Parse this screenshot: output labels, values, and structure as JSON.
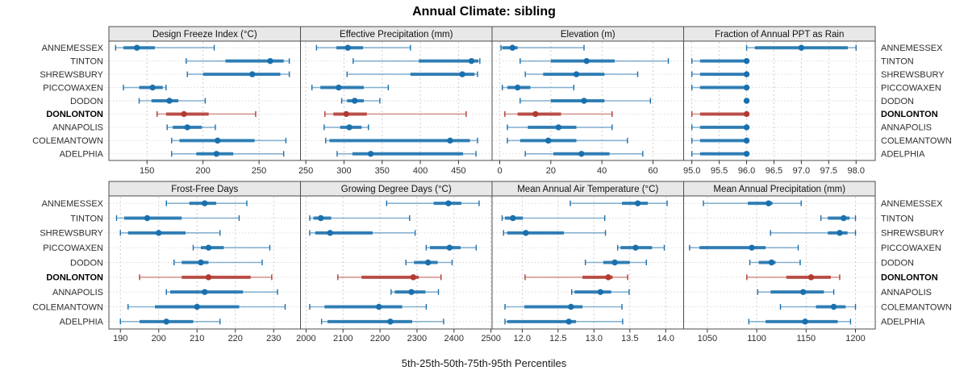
{
  "title": "Annual Climate: sibling",
  "footer": "5th-25th-50th-75th-95th Percentiles",
  "sites": [
    "ANNEMESSEX",
    "TINTON",
    "SHREWSBURY",
    "PICCOWAXEN",
    "DODON",
    "DONLONTON",
    "ANNAPOLIS",
    "COLEMANTOWN",
    "ADELPHIA"
  ],
  "highlight_site": "DONLONTON",
  "colors": {
    "normal": "#1a70ad",
    "highlight": "#b23a32",
    "panel_header_bg": "#e8e8e8",
    "panel_border": "#4d4d4d",
    "grid": "#c9c9c9",
    "row_guide": "#d8d8d8",
    "tick_text": "#2e2e2e",
    "label_text": "#2e2e2e"
  },
  "chart_data": {
    "type": "dot-interval-trellis",
    "percentile_levels": [
      5,
      25,
      50,
      75,
      95
    ],
    "layout": "2 rows x 4 columns",
    "panels": [
      {
        "title": "Design Freeze Index (°C)",
        "xlim": [
          116,
          287
        ],
        "ticks": [
          150,
          200,
          250
        ],
        "tick_labels": [
          "150",
          "200",
          "250"
        ],
        "percentiles": {
          "ANNEMESSEX": [
            122,
            129,
            141,
            157,
            210
          ],
          "TINTON": [
            185,
            220,
            260,
            272,
            277
          ],
          "SHREWSBURY": [
            186,
            200,
            244,
            269,
            277
          ],
          "PICCOWAXEN": [
            129,
            143,
            155,
            164,
            167
          ],
          "DODON": [
            143,
            154,
            170,
            178,
            202
          ],
          "DONLONTON": [
            159,
            167,
            183,
            205,
            247
          ],
          "ANNAPOLIS": [
            168,
            173,
            186,
            199,
            211
          ],
          "COLEMANTOWN": [
            172,
            179,
            213,
            246,
            274
          ],
          "ADELPHIA": [
            172,
            194,
            212,
            227,
            272
          ]
        }
      },
      {
        "title": "Effective Precipitation (mm)",
        "xlim": [
          243,
          494
        ],
        "ticks": [
          250,
          300,
          350,
          400,
          450
        ],
        "tick_labels": [
          "250",
          "300",
          "350",
          "400",
          "450"
        ],
        "percentiles": {
          "ANNEMESSEX": [
            264,
            290,
            305,
            325,
            387
          ],
          "TINTON": [
            312,
            398,
            467,
            476,
            478
          ],
          "SHREWSBURY": [
            304,
            387,
            455,
            471,
            475
          ],
          "PICCOWAXEN": [
            258,
            269,
            293,
            326,
            358
          ],
          "DODON": [
            297,
            304,
            314,
            326,
            347
          ],
          "DONLONTON": [
            275,
            286,
            303,
            330,
            460
          ],
          "ANNAPOLIS": [
            274,
            295,
            307,
            323,
            332
          ],
          "COLEMANTOWN": [
            276,
            281,
            439,
            465,
            475
          ],
          "ADELPHIA": [
            291,
            311,
            335,
            456,
            473
          ]
        }
      },
      {
        "title": "Elevation (m)",
        "xlim": [
          -3,
          72
        ],
        "ticks": [
          0,
          20,
          40,
          60
        ],
        "tick_labels": [
          "0",
          "20",
          "40",
          "60"
        ],
        "percentiles": {
          "ANNEMESSEX": [
            0.5,
            1,
            5,
            7,
            33
          ],
          "TINTON": [
            8,
            20,
            34,
            45,
            66
          ],
          "SHREWSBURY": [
            10,
            17,
            30,
            41,
            54
          ],
          "PICCOWAXEN": [
            1,
            3,
            7,
            12,
            29
          ],
          "DODON": [
            8,
            20,
            33,
            41,
            59
          ],
          "DONLONTON": [
            2,
            7,
            14,
            24,
            44
          ],
          "ANNAPOLIS": [
            3,
            11,
            23,
            30,
            44
          ],
          "COLEMANTOWN": [
            3,
            8,
            19,
            30,
            50
          ],
          "ADELPHIA": [
            10,
            21,
            32,
            43,
            56
          ]
        }
      },
      {
        "title": "Fraction of Annual PPT as Rain",
        "xlim": [
          94.85,
          98.35
        ],
        "ticks": [
          95.0,
          95.5,
          96.0,
          96.5,
          97.0,
          97.5,
          98.0
        ],
        "tick_labels": [
          "95.0",
          "95.5",
          "96.0",
          "96.5",
          "97.0",
          "97.5",
          "98.0"
        ],
        "percentiles": {
          "ANNEMESSEX": [
            96,
            96.15,
            97,
            97.85,
            98
          ],
          "TINTON": [
            95,
            95.15,
            96,
            96,
            96
          ],
          "SHREWSBURY": [
            95,
            95.15,
            96,
            96,
            96
          ],
          "PICCOWAXEN": [
            95,
            95.15,
            96,
            96,
            96
          ],
          "DODON": [
            96,
            96,
            96,
            96,
            96
          ],
          "DONLONTON": [
            95,
            95.15,
            96,
            96,
            96
          ],
          "ANNAPOLIS": [
            95,
            95.15,
            96,
            96,
            96
          ],
          "COLEMANTOWN": [
            95,
            95.15,
            96,
            96,
            96
          ],
          "ADELPHIA": [
            95,
            95.15,
            96,
            96,
            96
          ]
        }
      },
      {
        "title": "Frost-Free Days",
        "xlim": [
          187,
          237
        ],
        "ticks": [
          190,
          200,
          210,
          220,
          230
        ],
        "tick_labels": [
          "190",
          "200",
          "210",
          "220",
          "230"
        ],
        "percentiles": {
          "ANNEMESSEX": [
            202,
            208,
            212,
            215,
            223
          ],
          "TINTON": [
            189,
            191,
            197,
            206,
            221
          ],
          "SHREWSBURY": [
            190,
            192,
            200,
            207,
            216
          ],
          "PICCOWAXEN": [
            209,
            211,
            213,
            217,
            229
          ],
          "DODON": [
            204,
            206,
            211,
            213,
            227
          ],
          "DONLONTON": [
            195,
            206,
            213,
            224,
            229.5
          ],
          "ANNAPOLIS": [
            202,
            203,
            212,
            222,
            231
          ],
          "COLEMANTOWN": [
            192,
            199,
            210,
            221,
            233
          ],
          "ADELPHIA": [
            190,
            195,
            202,
            209,
            216
          ]
        }
      },
      {
        "title": "Growing Degree Days (°C)",
        "xlim": [
          1985,
          2503
        ],
        "ticks": [
          2000,
          2100,
          2200,
          2300,
          2400,
          2500
        ],
        "tick_labels": [
          "2000",
          "2100",
          "2200",
          "2300",
          "2400",
          "2500"
        ],
        "percentiles": {
          "ANNEMESSEX": [
            2218,
            2345,
            2385,
            2420,
            2468
          ],
          "TINTON": [
            2010,
            2020,
            2040,
            2068,
            2280
          ],
          "SHREWSBURY": [
            2010,
            2025,
            2065,
            2180,
            2295
          ],
          "PICCOWAXEN": [
            2325,
            2335,
            2388,
            2418,
            2460
          ],
          "DODON": [
            2270,
            2292,
            2330,
            2356,
            2395
          ],
          "DONLONTON": [
            2086,
            2150,
            2290,
            2305,
            2365
          ],
          "ANNAPOLIS": [
            2230,
            2240,
            2285,
            2323,
            2358
          ],
          "COLEMANTOWN": [
            2010,
            2050,
            2197,
            2260,
            2325
          ],
          "ADELPHIA": [
            2042,
            2058,
            2228,
            2287,
            2372
          ]
        }
      },
      {
        "title": "Mean Annual Air Temperature (°C)",
        "xlim": [
          11.58,
          14.25
        ],
        "ticks": [
          12.0,
          12.5,
          13.0,
          13.5,
          14.0
        ],
        "tick_labels": [
          "12.0",
          "12.5",
          "13.0",
          "13.5",
          "14.0"
        ],
        "percentiles": {
          "ANNEMESSEX": [
            12.67,
            13.39,
            13.61,
            13.75,
            14.02
          ],
          "TINTON": [
            11.72,
            11.76,
            11.87,
            12.01,
            13.15
          ],
          "SHREWSBURY": [
            11.74,
            11.79,
            12.05,
            12.58,
            13.16
          ],
          "PICCOWAXEN": [
            13.33,
            13.37,
            13.58,
            13.81,
            13.98
          ],
          "DODON": [
            12.88,
            13.13,
            13.29,
            13.5,
            13.73
          ],
          "DONLONTON": [
            12.04,
            12.84,
            13.2,
            13.26,
            13.47
          ],
          "ANNAPOLIS": [
            12.69,
            12.73,
            13.09,
            13.24,
            13.49
          ],
          "COLEMANTOWN": [
            11.76,
            12.03,
            12.68,
            12.84,
            13.39
          ],
          "ADELPHIA": [
            11.76,
            11.79,
            12.65,
            12.75,
            13.4
          ]
        }
      },
      {
        "title": "Mean Annual Precipitation (mm)",
        "xlim": [
          1026,
          1220
        ],
        "ticks": [
          1050,
          1100,
          1150,
          1200
        ],
        "tick_labels": [
          "1050",
          "1100",
          "1150",
          "1200"
        ],
        "percentiles": {
          "ANNEMESSEX": [
            1046,
            1091,
            1112,
            1116,
            1145
          ],
          "TINTON": [
            1165,
            1172,
            1188,
            1194,
            1200
          ],
          "SHREWSBURY": [
            1114,
            1172,
            1184,
            1192,
            1200
          ],
          "PICCOWAXEN": [
            1032,
            1042,
            1095,
            1109,
            1142
          ],
          "DODON": [
            1093,
            1102,
            1115,
            1119,
            1144
          ],
          "DONLONTON": [
            1090,
            1130,
            1155,
            1175,
            1184
          ],
          "ANNAPOLIS": [
            1101,
            1114,
            1147,
            1168,
            1178
          ],
          "COLEMANTOWN": [
            1124,
            1160,
            1178,
            1190,
            1200
          ],
          "ADELPHIA": [
            1092,
            1109,
            1149,
            1182,
            1195
          ]
        }
      }
    ]
  }
}
